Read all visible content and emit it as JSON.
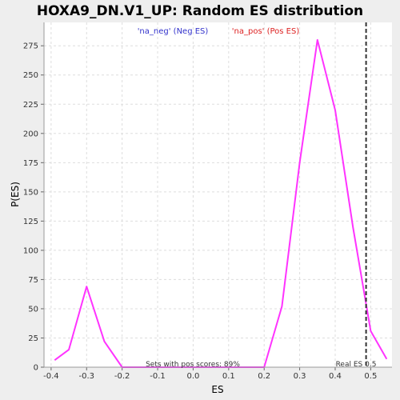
{
  "chart_data": {
    "type": "line",
    "title": "HOXA9_DN.V1_UP: Random ES distribution",
    "xlabel": "ES",
    "ylabel": "P(ES)",
    "xlim": [
      -0.42,
      0.56
    ],
    "ylim": [
      0,
      295
    ],
    "xticks": [
      -0.4,
      -0.3,
      -0.2,
      -0.1,
      0.0,
      0.1,
      0.2,
      0.3,
      0.4,
      0.5
    ],
    "xtick_labels": [
      "-0.4",
      "-0.3",
      "-0.2",
      "-0.1",
      "0.0",
      "0.1",
      "0.2",
      "0.3",
      "0.4",
      "0.5"
    ],
    "yticks": [
      0,
      25,
      50,
      75,
      100,
      125,
      150,
      175,
      200,
      225,
      250,
      275
    ],
    "ytick_labels": [
      "0",
      "25",
      "50",
      "75",
      "100",
      "125",
      "150",
      "175",
      "200",
      "225",
      "250",
      "275"
    ],
    "grid": true,
    "legend": [
      {
        "label": "'na_neg' (Neg ES)",
        "color": "#3333cc"
      },
      {
        "label": "'na_pos' (Pos ES)",
        "color": "#dd2222"
      }
    ],
    "series": [
      {
        "color": "#ff33ff",
        "x": [
          -0.39,
          -0.35,
          -0.3,
          -0.25,
          -0.2,
          -0.15,
          -0.1,
          -0.05,
          0.0,
          0.05,
          0.1,
          0.15,
          0.2,
          0.25,
          0.3,
          0.35,
          0.4,
          0.45,
          0.5,
          0.545
        ],
        "y": [
          6,
          15,
          69,
          22,
          0,
          0,
          0,
          0,
          0,
          0,
          0,
          0,
          0,
          52,
          175,
          280,
          220,
          120,
          31,
          7
        ]
      }
    ],
    "real_es": {
      "x": 0.487,
      "label": "Real ES 0.5",
      "color": "#333333"
    },
    "annotation": "Sets with pos scores: 89%"
  }
}
